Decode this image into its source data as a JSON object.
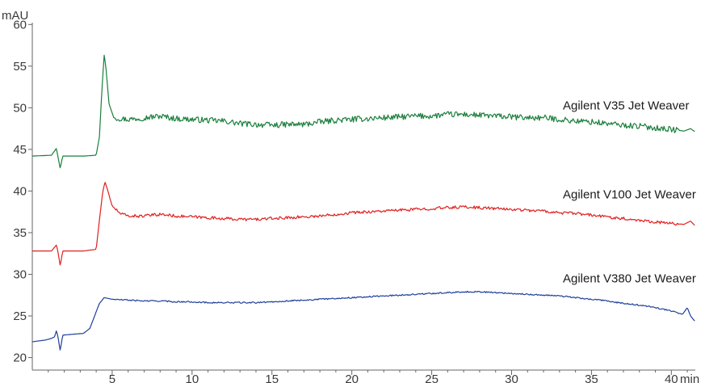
{
  "chart_data": {
    "type": "line",
    "title": "",
    "xlabel": "min",
    "ylabel": "mAU",
    "xlim": [
      0,
      41.5
    ],
    "ylim": [
      18.5,
      61
    ],
    "x_ticks": [
      5,
      10,
      15,
      20,
      25,
      30,
      35,
      40
    ],
    "y_ticks": [
      20,
      25,
      30,
      35,
      40,
      45,
      50,
      55,
      60
    ],
    "grid": false,
    "series": [
      {
        "name": "Agilent V35 Jet Weaver",
        "color": "#1a7f3c",
        "baseline": 44.2,
        "points": [
          [
            0,
            44.2
          ],
          [
            1.2,
            44.3
          ],
          [
            1.5,
            45.1
          ],
          [
            1.6,
            44.2
          ],
          [
            1.75,
            42.7
          ],
          [
            1.9,
            44.2
          ],
          [
            2.5,
            44.2
          ],
          [
            3.2,
            44.2
          ],
          [
            4.0,
            44.3
          ],
          [
            4.2,
            46.5
          ],
          [
            4.35,
            52.0
          ],
          [
            4.5,
            56.3
          ],
          [
            4.6,
            55.0
          ],
          [
            4.8,
            50.5
          ],
          [
            5.1,
            48.8
          ],
          [
            6,
            48.6
          ],
          [
            7,
            48.8
          ],
          [
            8,
            49.0
          ],
          [
            9,
            48.7
          ],
          [
            10,
            48.6
          ],
          [
            11,
            48.5
          ],
          [
            12,
            48.4
          ],
          [
            13,
            48.1
          ],
          [
            14,
            48.0
          ],
          [
            15,
            47.9
          ],
          [
            16,
            48.0
          ],
          [
            17,
            48.0
          ],
          [
            18,
            48.3
          ],
          [
            19,
            48.5
          ],
          [
            20,
            48.6
          ],
          [
            21,
            48.7
          ],
          [
            22,
            48.8
          ],
          [
            23,
            48.9
          ],
          [
            24,
            49.0
          ],
          [
            25,
            49.0
          ],
          [
            26,
            49.2
          ],
          [
            27,
            49.2
          ],
          [
            28,
            49.1
          ],
          [
            29,
            49.0
          ],
          [
            30,
            48.9
          ],
          [
            31,
            48.8
          ],
          [
            32,
            48.8
          ],
          [
            33,
            48.6
          ],
          [
            34,
            48.4
          ],
          [
            35,
            48.3
          ],
          [
            36,
            48.1
          ],
          [
            37,
            47.9
          ],
          [
            38,
            47.8
          ],
          [
            39,
            47.6
          ],
          [
            40,
            47.4
          ],
          [
            40.8,
            47.2
          ],
          [
            41.2,
            47.5
          ],
          [
            41.5,
            47.1
          ]
        ]
      },
      {
        "name": "Agilent V100 Jet Weaver",
        "color": "#e02020",
        "baseline": 32.8,
        "points": [
          [
            0,
            32.8
          ],
          [
            1.2,
            32.8
          ],
          [
            1.5,
            33.5
          ],
          [
            1.6,
            32.8
          ],
          [
            1.75,
            31.0
          ],
          [
            1.9,
            32.8
          ],
          [
            2.5,
            32.8
          ],
          [
            3.2,
            32.8
          ],
          [
            4.0,
            33.0
          ],
          [
            4.2,
            36.5
          ],
          [
            4.4,
            39.8
          ],
          [
            4.55,
            41.1
          ],
          [
            4.7,
            40.2
          ],
          [
            5.0,
            38.2
          ],
          [
            5.5,
            37.3
          ],
          [
            6,
            37.0
          ],
          [
            7,
            37.0
          ],
          [
            8,
            37.2
          ],
          [
            9,
            37.0
          ],
          [
            10,
            36.9
          ],
          [
            11,
            36.8
          ],
          [
            12,
            36.7
          ],
          [
            13,
            36.6
          ],
          [
            14,
            36.6
          ],
          [
            15,
            36.7
          ],
          [
            16,
            36.8
          ],
          [
            17,
            36.9
          ],
          [
            18,
            37.0
          ],
          [
            19,
            37.2
          ],
          [
            20,
            37.4
          ],
          [
            21,
            37.5
          ],
          [
            22,
            37.6
          ],
          [
            23,
            37.7
          ],
          [
            24,
            37.8
          ],
          [
            25,
            37.9
          ],
          [
            26,
            38.0
          ],
          [
            27,
            38.1
          ],
          [
            28,
            38.0
          ],
          [
            29,
            37.9
          ],
          [
            30,
            37.8
          ],
          [
            31,
            37.7
          ],
          [
            32,
            37.6
          ],
          [
            33,
            37.4
          ],
          [
            34,
            37.3
          ],
          [
            35,
            37.1
          ],
          [
            36,
            36.9
          ],
          [
            37,
            36.7
          ],
          [
            38,
            36.5
          ],
          [
            39,
            36.3
          ],
          [
            40,
            36.1
          ],
          [
            40.8,
            36.0
          ],
          [
            41.2,
            36.4
          ],
          [
            41.5,
            35.8
          ]
        ]
      },
      {
        "name": "Agilent V380 Jet Weaver",
        "color": "#1f3f9a",
        "baseline": 22.0,
        "points": [
          [
            0,
            21.9
          ],
          [
            0.8,
            22.1
          ],
          [
            1.2,
            22.3
          ],
          [
            1.4,
            22.5
          ],
          [
            1.5,
            23.2
          ],
          [
            1.6,
            22.6
          ],
          [
            1.75,
            20.8
          ],
          [
            1.9,
            22.7
          ],
          [
            2.5,
            22.8
          ],
          [
            3.2,
            22.9
          ],
          [
            3.6,
            23.5
          ],
          [
            3.9,
            25.0
          ],
          [
            4.2,
            26.5
          ],
          [
            4.5,
            27.2
          ],
          [
            5,
            27.0
          ],
          [
            6,
            26.9
          ],
          [
            7,
            26.8
          ],
          [
            8,
            26.8
          ],
          [
            9,
            26.7
          ],
          [
            10,
            26.7
          ],
          [
            11,
            26.6
          ],
          [
            12,
            26.6
          ],
          [
            13,
            26.6
          ],
          [
            14,
            26.6
          ],
          [
            15,
            26.7
          ],
          [
            16,
            26.8
          ],
          [
            17,
            26.9
          ],
          [
            18,
            27.0
          ],
          [
            19,
            27.1
          ],
          [
            20,
            27.2
          ],
          [
            21,
            27.3
          ],
          [
            22,
            27.4
          ],
          [
            23,
            27.5
          ],
          [
            24,
            27.6
          ],
          [
            25,
            27.7
          ],
          [
            26,
            27.8
          ],
          [
            27,
            27.9
          ],
          [
            28,
            27.9
          ],
          [
            29,
            27.8
          ],
          [
            30,
            27.7
          ],
          [
            31,
            27.6
          ],
          [
            32,
            27.5
          ],
          [
            33,
            27.4
          ],
          [
            34,
            27.2
          ],
          [
            35,
            27.0
          ],
          [
            36,
            26.8
          ],
          [
            37,
            26.5
          ],
          [
            38,
            26.3
          ],
          [
            39,
            26.0
          ],
          [
            40,
            25.6
          ],
          [
            40.7,
            25.2
          ],
          [
            41.0,
            26.0
          ],
          [
            41.2,
            25.0
          ],
          [
            41.5,
            24.3
          ]
        ]
      }
    ]
  }
}
